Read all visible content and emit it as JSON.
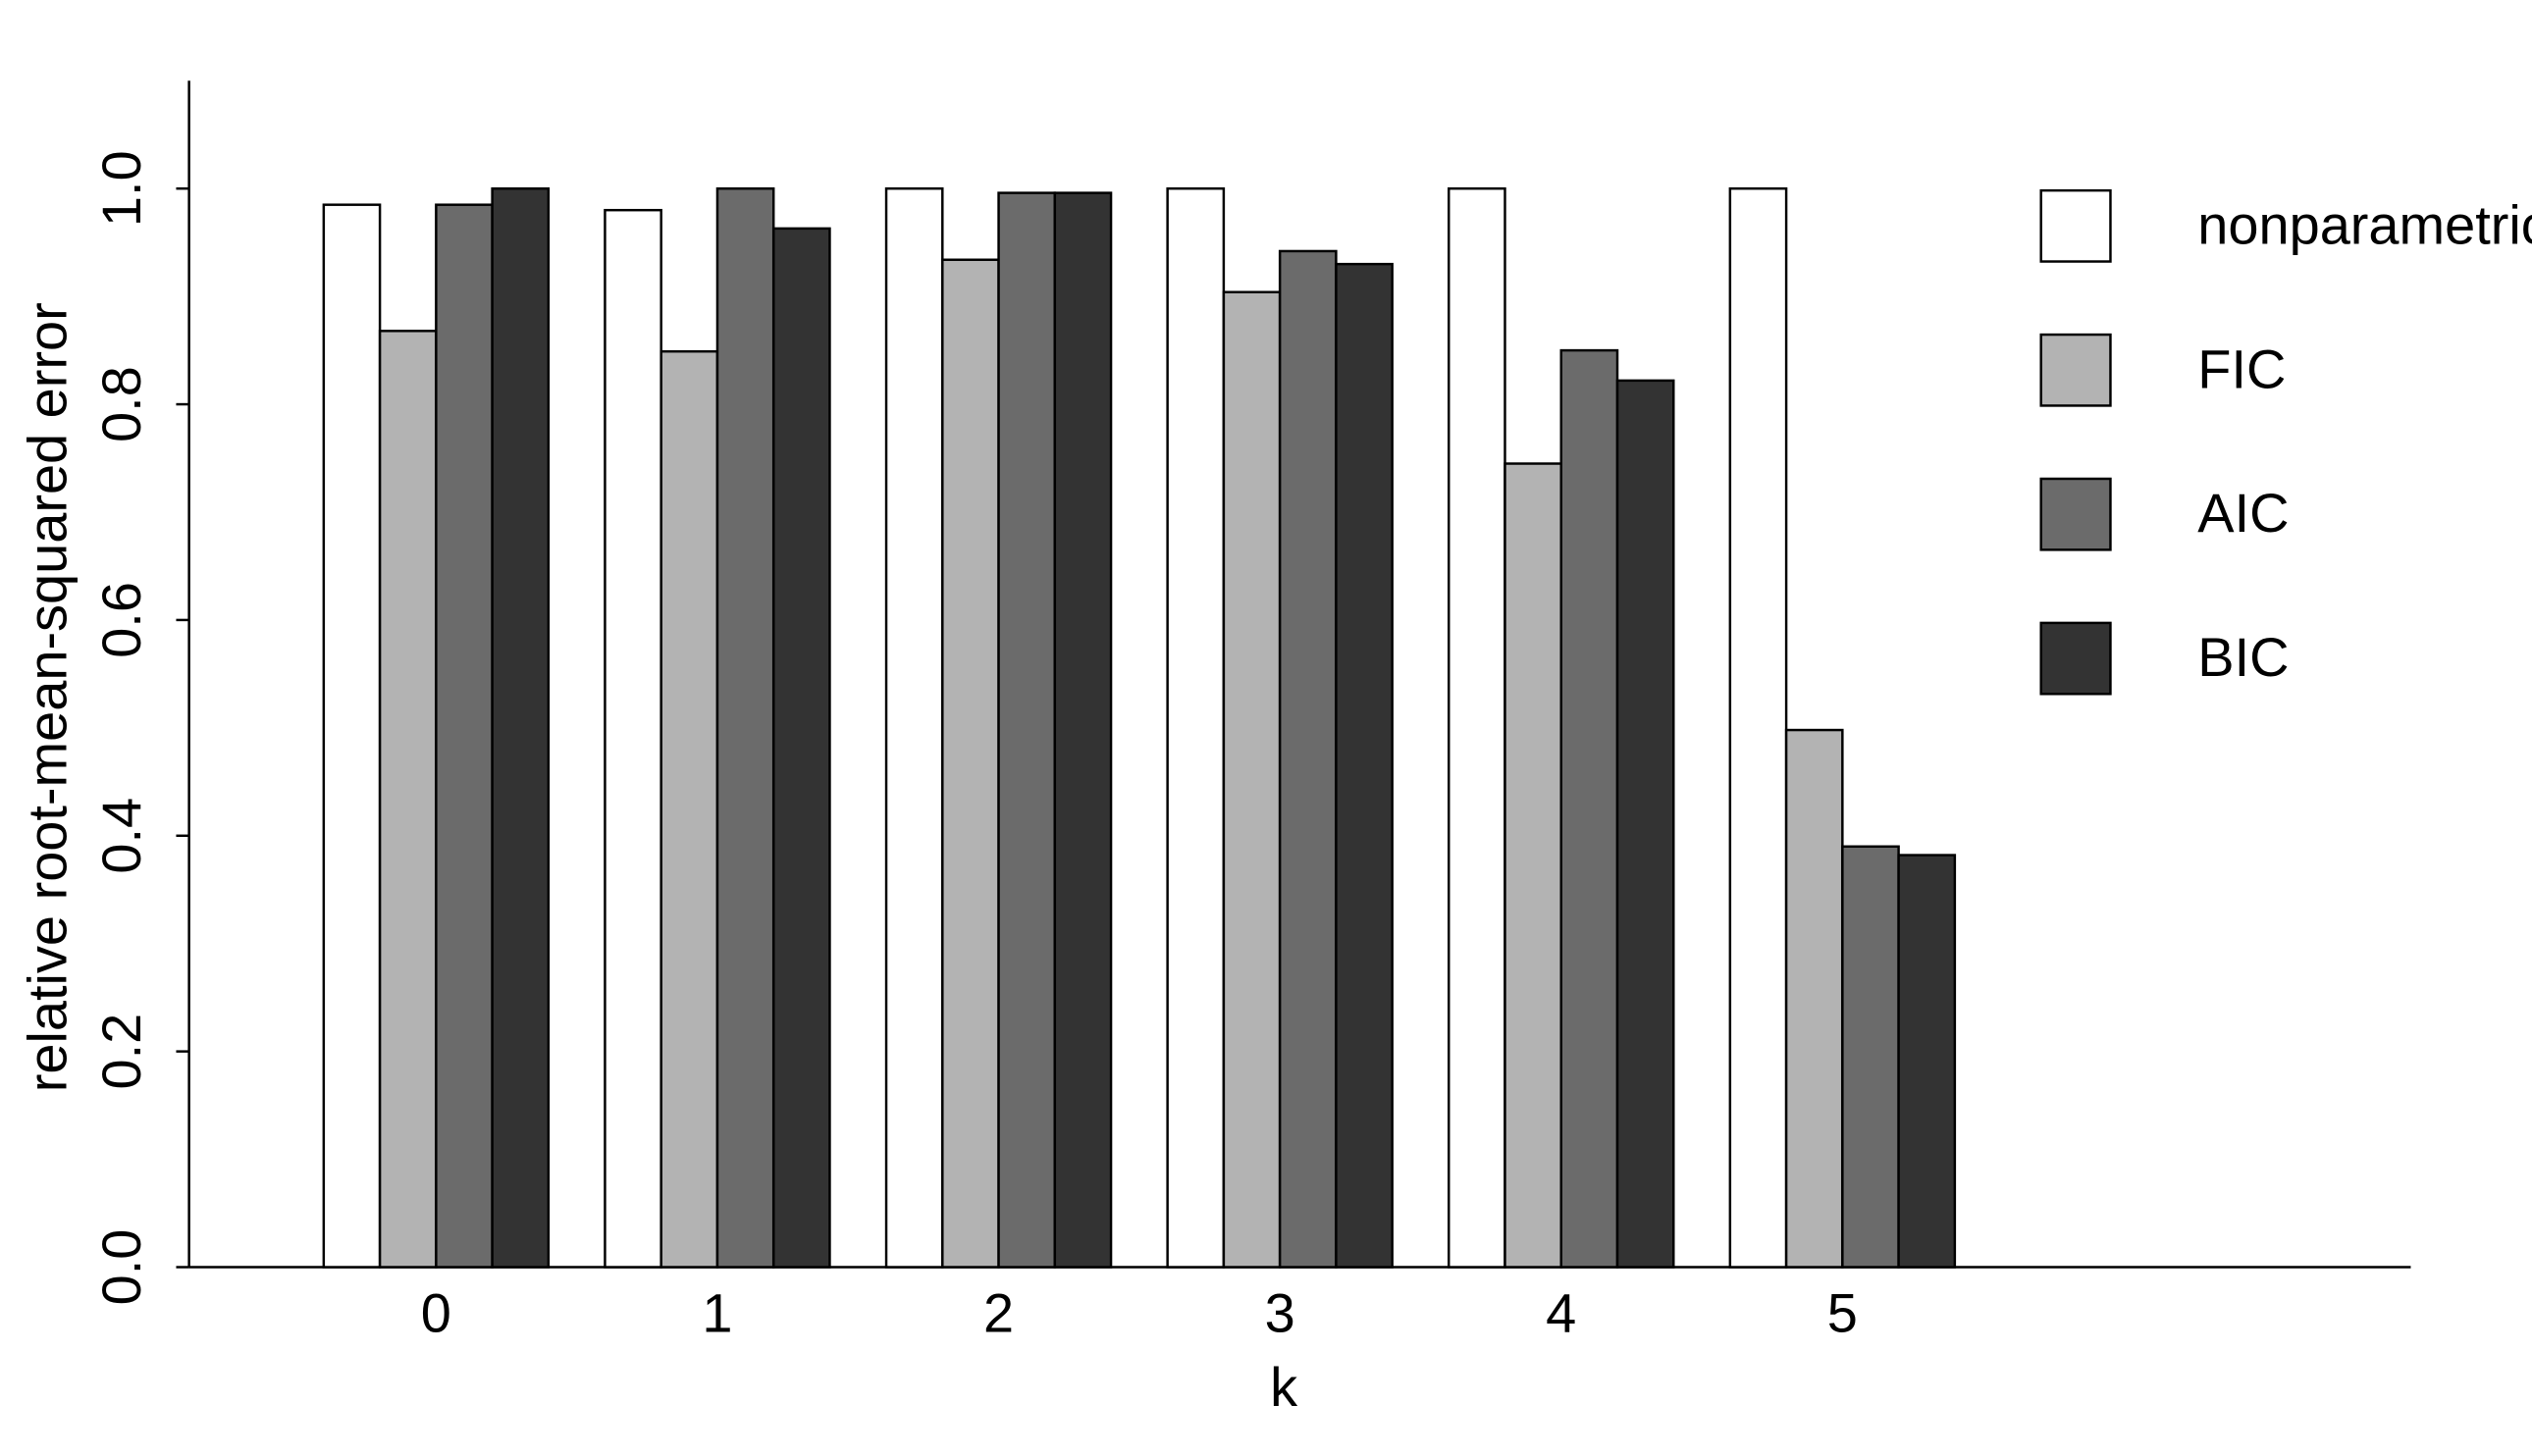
{
  "chart_data": {
    "type": "bar",
    "x_label": "k",
    "y_label": "relative root-mean-squared error",
    "categories": [
      "0",
      "1",
      "2",
      "3",
      "4",
      "5"
    ],
    "series": [
      {
        "name": "nonparametric",
        "color": "#ffffff",
        "values": [
          0.985,
          0.98,
          1.0,
          1.0,
          1.0,
          1.0
        ]
      },
      {
        "name": "FIC",
        "color": "#b3b3b3",
        "values": [
          0.868,
          0.849,
          0.934,
          0.904,
          0.745,
          0.498
        ]
      },
      {
        "name": "AIC",
        "color": "#6b6b6b",
        "values": [
          0.985,
          1.0,
          0.996,
          0.942,
          0.85,
          0.39
        ]
      },
      {
        "name": "BIC",
        "color": "#333333",
        "values": [
          1.0,
          0.963,
          0.996,
          0.93,
          0.822,
          0.382
        ]
      }
    ],
    "ylim": [
      0,
      1.1
    ],
    "yticks": [
      {
        "value": 0,
        "label": "0.0"
      },
      {
        "value": 0.2,
        "label": "0.2"
      },
      {
        "value": 0.4,
        "label": "0.4"
      },
      {
        "value": 0.6,
        "label": "0.6"
      },
      {
        "value": 0.8,
        "label": "0.8"
      },
      {
        "value": 1,
        "label": "1.0"
      }
    ],
    "legend": "right"
  }
}
